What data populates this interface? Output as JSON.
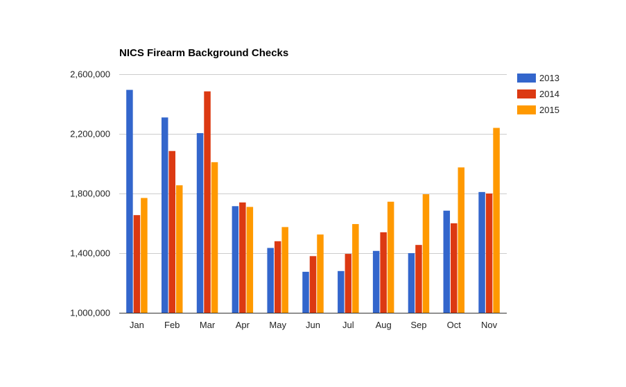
{
  "chart_data": {
    "type": "bar",
    "title": "NICS Firearm Background Checks",
    "xlabel": "",
    "ylabel": "",
    "categories": [
      "Jan",
      "Feb",
      "Mar",
      "Apr",
      "May",
      "Jun",
      "Jul",
      "Aug",
      "Sep",
      "Oct",
      "Nov"
    ],
    "series": [
      {
        "name": "2013",
        "color": "#3366cc",
        "values": [
          2495000,
          2310000,
          2205000,
          1715000,
          1435000,
          1275000,
          1280000,
          1415000,
          1400000,
          1685000,
          1810000
        ]
      },
      {
        "name": "2014",
        "color": "#dc3912",
        "values": [
          1655000,
          2085000,
          2485000,
          1740000,
          1480000,
          1380000,
          1395000,
          1540000,
          1455000,
          1600000,
          1800000
        ]
      },
      {
        "name": "2015",
        "color": "#ff9900",
        "values": [
          1770000,
          1855000,
          2010000,
          1710000,
          1575000,
          1525000,
          1595000,
          1745000,
          1795000,
          1975000,
          2240000
        ]
      }
    ],
    "ylim": [
      1000000,
      2600000
    ],
    "yticks": [
      1000000,
      1400000,
      1800000,
      2200000,
      2600000
    ],
    "ytick_labels": [
      "1,000,000",
      "1,400,000",
      "1,800,000",
      "2,200,000",
      "2,600,000"
    ],
    "grid": true,
    "legend_position": "right"
  }
}
